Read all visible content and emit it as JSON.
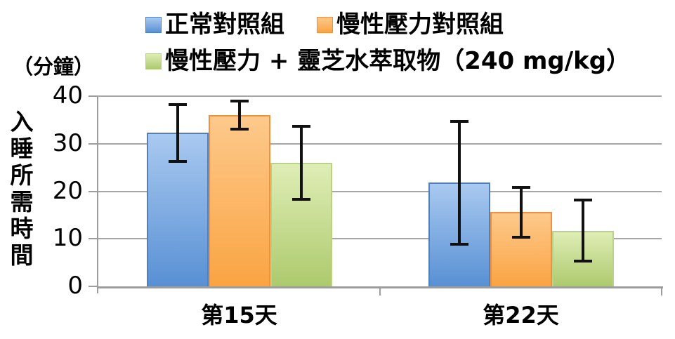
{
  "chart_data": {
    "type": "bar",
    "title": "",
    "unit_label": "（分鐘）",
    "ylabel": "入睡所需時間",
    "xlabel": "",
    "categories": [
      "第15天",
      "第22天"
    ],
    "series": [
      {
        "name": "正常對照組",
        "values": [
          32.3,
          21.8
        ],
        "errors": [
          6.0,
          12.9
        ],
        "color_top": "#a9c9f0",
        "color_bottom": "#5890d4",
        "border_color": "#4e81be"
      },
      {
        "name": "慢性壓力對照組",
        "values": [
          36.0,
          15.6
        ],
        "errors": [
          2.9,
          5.2
        ],
        "color_top": "#fdc98b",
        "color_bottom": "#faa443",
        "border_color": "#f19140"
      },
      {
        "name": "慢性壓力 + 靈芝水萃取物（240 mg/kg）",
        "values": [
          26.0,
          11.7
        ],
        "errors": [
          7.7,
          6.4
        ],
        "color_top": "#dfedb6",
        "color_bottom": "#adca6d",
        "border_color": "#b9d283"
      }
    ],
    "ylim": [
      0,
      40
    ],
    "yticks": [
      0,
      10,
      20,
      30,
      40
    ],
    "grid": true,
    "legend_position": "top",
    "error_bar_color": "#111111",
    "gridline_color": "#a6a6a6"
  }
}
